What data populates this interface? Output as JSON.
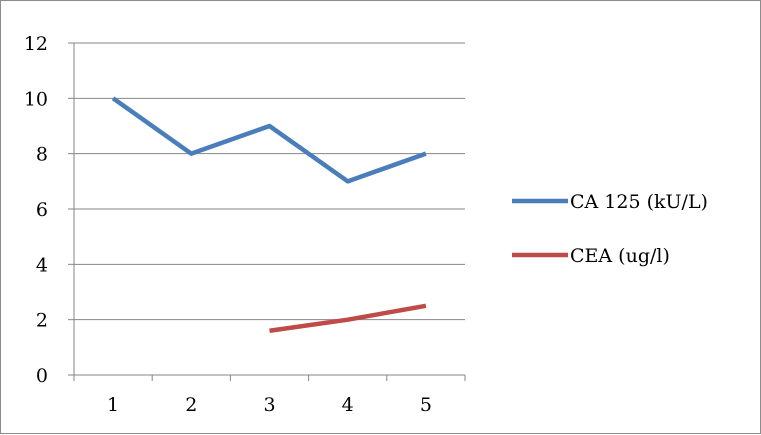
{
  "chart_data": {
    "type": "line",
    "categories": [
      "1",
      "2",
      "3",
      "4",
      "5"
    ],
    "series": [
      {
        "name": "CA 125 (kU/L)",
        "color": "#4a7ebb",
        "values": [
          10,
          8,
          9,
          7,
          8
        ]
      },
      {
        "name": "CEA (ug/l)",
        "color": "#be4b48",
        "values": [
          null,
          null,
          1.6,
          2.0,
          2.5
        ]
      }
    ],
    "y_ticks": [
      "0",
      "2",
      "4",
      "6",
      "8",
      "10",
      "12"
    ],
    "ylim": [
      0,
      12
    ],
    "grid": true,
    "legend_position": "right"
  }
}
